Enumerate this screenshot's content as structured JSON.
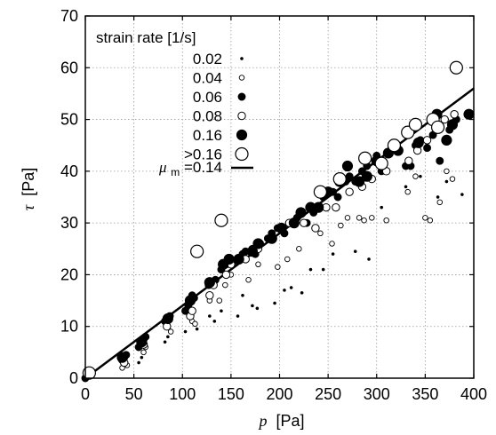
{
  "chart_data": {
    "type": "scatter",
    "xlabel_var": "p",
    "xlabel_unit": "[Pa]",
    "ylabel_var": "τ",
    "ylabel_unit": "[Pa]",
    "xlim": [
      0,
      400
    ],
    "ylim": [
      0,
      70
    ],
    "xticks": [
      "0",
      "50",
      "100",
      "150",
      "200",
      "250",
      "300",
      "350",
      "400"
    ],
    "yticks": [
      "0",
      "10",
      "20",
      "30",
      "40",
      "50",
      "60",
      "70"
    ],
    "grid": true,
    "legend_placement": "top-left",
    "legend_title": "strain rate [1/s]",
    "series": [
      {
        "name": "0.02",
        "marker": "tiny-filled",
        "points": [
          [
            38,
            3
          ],
          [
            40,
            2.5
          ],
          [
            55,
            3
          ],
          [
            58,
            4
          ],
          [
            82,
            7
          ],
          [
            85,
            8
          ],
          [
            103,
            9
          ],
          [
            115,
            9.5
          ],
          [
            128,
            12
          ],
          [
            133,
            11
          ],
          [
            140,
            13
          ],
          [
            157,
            12
          ],
          [
            162,
            16
          ],
          [
            172,
            14
          ],
          [
            177,
            13.5
          ],
          [
            195,
            14.5
          ],
          [
            205,
            17
          ],
          [
            212,
            17.5
          ],
          [
            223,
            16.5
          ],
          [
            232,
            21
          ],
          [
            245,
            21
          ],
          [
            255,
            24
          ],
          [
            278,
            24.5
          ],
          [
            292,
            23
          ],
          [
            305,
            33
          ],
          [
            330,
            37
          ],
          [
            345,
            39
          ],
          [
            363,
            35
          ],
          [
            372,
            38
          ],
          [
            388,
            35.5
          ]
        ]
      },
      {
        "name": "0.04",
        "marker": "small-open",
        "points": [
          [
            38,
            2
          ],
          [
            43,
            2.5
          ],
          [
            60,
            5
          ],
          [
            62,
            6
          ],
          [
            83,
            10
          ],
          [
            88,
            9
          ],
          [
            110,
            11
          ],
          [
            113,
            10.5
          ],
          [
            128,
            15
          ],
          [
            138,
            15
          ],
          [
            144,
            18
          ],
          [
            150,
            20
          ],
          [
            168,
            19
          ],
          [
            178,
            22
          ],
          [
            198,
            21.5
          ],
          [
            208,
            23
          ],
          [
            220,
            25
          ],
          [
            242,
            28
          ],
          [
            254,
            26
          ],
          [
            263,
            29.5
          ],
          [
            270,
            31
          ],
          [
            282,
            31
          ],
          [
            287,
            30.5
          ],
          [
            295,
            31
          ],
          [
            310,
            30.5
          ],
          [
            332,
            36
          ],
          [
            340,
            39
          ],
          [
            350,
            31
          ],
          [
            355,
            30.5
          ],
          [
            365,
            34
          ],
          [
            372,
            40
          ],
          [
            378,
            38.5
          ]
        ]
      },
      {
        "name": "0.06",
        "marker": "medium-filled",
        "points": [
          [
            0,
            0
          ],
          [
            38,
            3.5
          ],
          [
            40,
            4
          ],
          [
            42,
            4.5
          ],
          [
            55,
            6
          ],
          [
            58,
            7
          ],
          [
            60,
            7.5
          ],
          [
            62,
            8
          ],
          [
            82,
            11
          ],
          [
            84,
            11.5
          ],
          [
            87,
            12
          ],
          [
            103,
            13
          ],
          [
            106,
            14
          ],
          [
            110,
            16
          ],
          [
            112,
            15.5
          ],
          [
            127,
            18
          ],
          [
            130,
            18.5
          ],
          [
            134,
            19
          ],
          [
            140,
            21
          ],
          [
            145,
            22
          ],
          [
            148,
            23
          ],
          [
            152,
            22.5
          ],
          [
            162,
            24
          ],
          [
            165,
            24.5
          ],
          [
            172,
            25
          ],
          [
            175,
            24
          ],
          [
            180,
            26
          ],
          [
            188,
            27
          ],
          [
            192,
            28
          ],
          [
            198,
            29
          ],
          [
            205,
            28
          ],
          [
            210,
            30
          ],
          [
            218,
            31
          ],
          [
            222,
            32
          ],
          [
            228,
            30
          ],
          [
            235,
            32
          ],
          [
            240,
            33
          ],
          [
            245,
            35
          ],
          [
            255,
            36
          ],
          [
            260,
            35
          ],
          [
            268,
            38
          ],
          [
            272,
            39
          ],
          [
            278,
            38
          ],
          [
            285,
            40
          ],
          [
            290,
            41
          ],
          [
            300,
            43
          ],
          [
            305,
            40
          ],
          [
            315,
            44
          ],
          [
            330,
            41
          ],
          [
            335,
            41
          ],
          [
            340,
            45
          ],
          [
            345,
            46
          ],
          [
            352,
            44.5
          ],
          [
            358,
            47
          ],
          [
            365,
            42
          ],
          [
            375,
            48
          ],
          [
            382,
            50
          ],
          [
            395,
            51
          ]
        ]
      },
      {
        "name": "0.08",
        "marker": "medium-open",
        "points": [
          [
            5,
            1
          ],
          [
            40,
            3
          ],
          [
            60,
            6.5
          ],
          [
            84,
            10
          ],
          [
            108,
            12
          ],
          [
            110,
            13
          ],
          [
            128,
            16
          ],
          [
            132,
            18
          ],
          [
            145,
            20
          ],
          [
            150,
            22
          ],
          [
            165,
            23
          ],
          [
            178,
            25
          ],
          [
            200,
            29
          ],
          [
            210,
            30
          ],
          [
            225,
            30
          ],
          [
            237,
            29
          ],
          [
            248,
            33
          ],
          [
            258,
            33
          ],
          [
            272,
            36
          ],
          [
            285,
            37
          ],
          [
            295,
            38.5
          ],
          [
            310,
            40
          ],
          [
            333,
            42
          ],
          [
            342,
            44
          ],
          [
            352,
            46
          ],
          [
            362,
            48
          ],
          [
            370,
            50
          ],
          [
            380,
            51
          ]
        ]
      },
      {
        "name": "0.16",
        "marker": "large-filled",
        "points": [
          [
            38,
            4
          ],
          [
            58,
            7
          ],
          [
            85,
            11.5
          ],
          [
            108,
            15
          ],
          [
            128,
            18.5
          ],
          [
            142,
            22
          ],
          [
            148,
            23
          ],
          [
            158,
            23
          ],
          [
            172,
            24.5
          ],
          [
            178,
            26
          ],
          [
            192,
            27
          ],
          [
            202,
            29
          ],
          [
            215,
            30
          ],
          [
            222,
            32
          ],
          [
            232,
            33
          ],
          [
            240,
            33
          ],
          [
            250,
            36
          ],
          [
            262,
            38
          ],
          [
            270,
            41
          ],
          [
            282,
            38
          ],
          [
            290,
            39
          ],
          [
            300,
            42
          ],
          [
            312,
            43.5
          ],
          [
            322,
            44
          ],
          [
            343,
            45.5
          ],
          [
            362,
            51
          ],
          [
            372,
            46
          ],
          [
            378,
            49
          ],
          [
            395,
            51
          ]
        ]
      },
      {
        "name": ">0.16",
        "marker": "large-open",
        "points": [
          [
            4,
            1
          ],
          [
            115,
            24.5
          ],
          [
            140,
            30.5
          ],
          [
            242,
            36
          ],
          [
            262,
            38.5
          ],
          [
            288,
            42.5
          ],
          [
            305,
            41.5
          ],
          [
            318,
            45
          ],
          [
            332,
            47.5
          ],
          [
            340,
            49
          ],
          [
            358,
            50
          ],
          [
            363,
            48.5
          ],
          [
            382,
            60
          ]
        ]
      }
    ],
    "fit_line": {
      "label_var": "μ",
      "label_sub": "m",
      "label_value": "=0.14",
      "slope": 0.14,
      "intercept": 0
    }
  }
}
